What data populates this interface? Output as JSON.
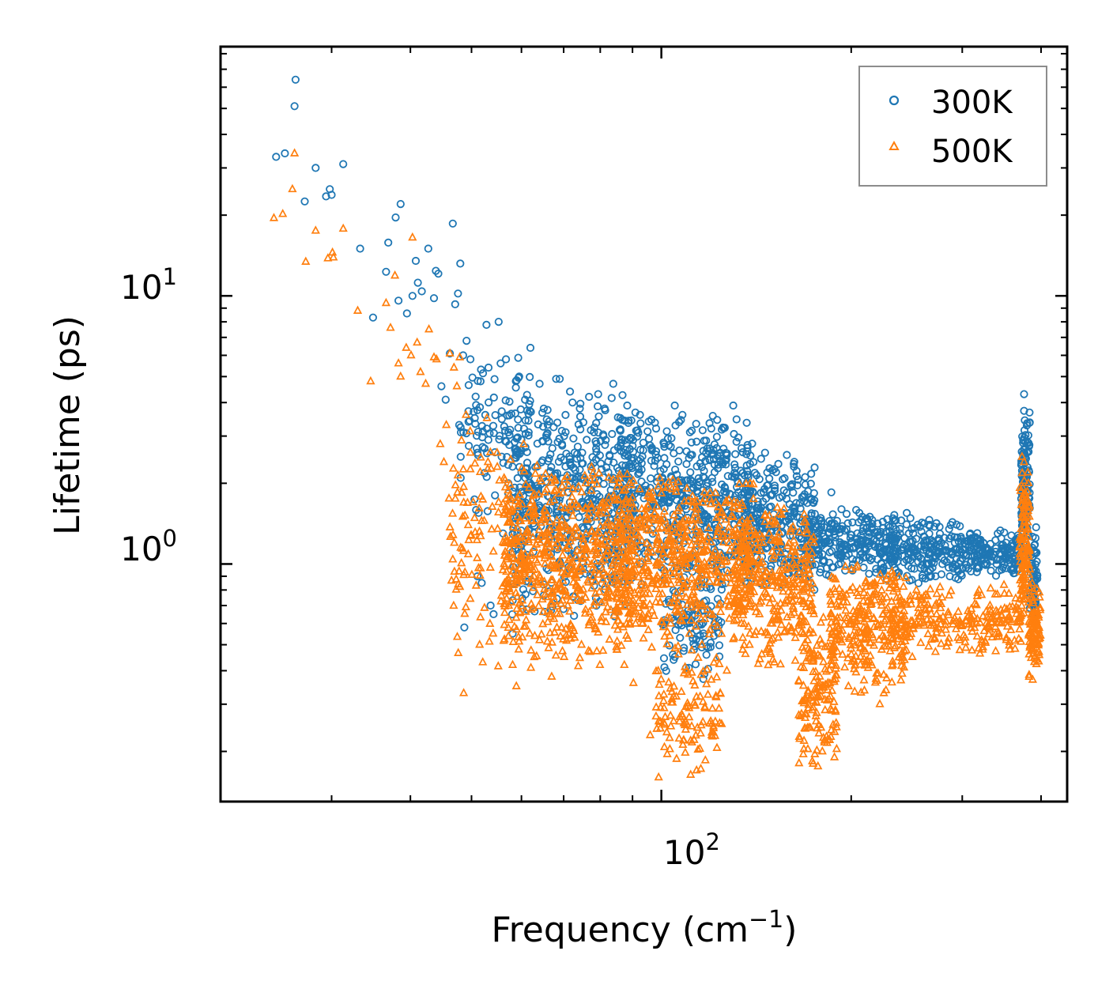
{
  "chart_data": {
    "type": "scatter",
    "title": "",
    "xlabel": "Frequency (cm",
    "xlabel_sup": "−1",
    "xlabel_close": ")",
    "ylabel": "Lifetime (ps)",
    "xscale": "log",
    "yscale": "log",
    "xlim": [
      20,
      440
    ],
    "ylim": [
      0.13,
      85
    ],
    "x_ticks": [
      {
        "base": "10",
        "exp": "2",
        "value": 100
      }
    ],
    "y_ticks": [
      {
        "base": "10",
        "exp": "0",
        "value": 1
      },
      {
        "base": "10",
        "exp": "1",
        "value": 10
      }
    ],
    "legend": {
      "position": "top-right"
    },
    "series": [
      {
        "name": "300K",
        "marker": "circle",
        "color": "#1f77b4",
        "points": [
          [
            24.5,
            33
          ],
          [
            25.3,
            34
          ],
          [
            26.2,
            51
          ],
          [
            26.3,
            64
          ],
          [
            27.2,
            22.5
          ],
          [
            28.3,
            30
          ],
          [
            29.4,
            23.5
          ],
          [
            29.8,
            25
          ],
          [
            30.0,
            23.8
          ],
          [
            31.3,
            31
          ],
          [
            33.3,
            15
          ],
          [
            34.9,
            8.3
          ],
          [
            36.6,
            12.3
          ],
          [
            36.9,
            15.8
          ],
          [
            37.9,
            19.6
          ],
          [
            38.3,
            9.6
          ],
          [
            38.6,
            22
          ],
          [
            39.5,
            8.6
          ],
          [
            40.3,
            10
          ],
          [
            40.8,
            13.5
          ],
          [
            41.1,
            11.2
          ],
          [
            41.7,
            10.4
          ],
          [
            42.7,
            15
          ],
          [
            43.6,
            9.8
          ],
          [
            43.9,
            12.4
          ],
          [
            44.3,
            12.1
          ],
          [
            44.8,
            4.6
          ],
          [
            45.5,
            4.1
          ],
          [
            46.2,
            6.1
          ],
          [
            46.7,
            18.6
          ],
          [
            47.1,
            9.3
          ],
          [
            47.6,
            10.2
          ],
          [
            48.0,
            13.2
          ],
          [
            47.8,
            3.3
          ],
          [
            48.5,
            6
          ],
          [
            48.7,
            0.58
          ],
          [
            49.1,
            6.8
          ],
          [
            49.8,
            5.8
          ],
          [
            50.6,
            3.5
          ],
          [
            51.1,
            0.9
          ],
          [
            51.9,
            0.85
          ],
          [
            52.8,
            7.8
          ],
          [
            53.2,
            5.4
          ],
          [
            53.6,
            0.7
          ],
          [
            54.2,
            0.65
          ],
          [
            55.2,
            8
          ],
          [
            55.6,
            5.6
          ],
          [
            56.1,
            1.3
          ],
          [
            56.7,
            5.8
          ],
          [
            57.2,
            2
          ],
          [
            57.6,
            1.5
          ],
          [
            58.1,
            0.55
          ],
          [
            59.0,
            0.86
          ],
          [
            59.5,
            5
          ],
          [
            60.3,
            1.7
          ],
          [
            60.8,
            4.1
          ],
          [
            61.6,
            3.1
          ],
          [
            62.0,
            6.4
          ],
          [
            63.1,
            2.3
          ],
          [
            64.1,
            4.7
          ],
          [
            65.1,
            3.8
          ],
          [
            66.9,
            2.3
          ],
          [
            68.1,
            4.9
          ],
          [
            69.0,
            4.9
          ],
          [
            70.1,
            3
          ],
          [
            72.3,
            4
          ],
          [
            74.9,
            2.6
          ],
          [
            76.8,
            4.2
          ],
          [
            78.2,
            3.1
          ],
          [
            79.4,
            4.3
          ],
          [
            81.3,
            3.8
          ],
          [
            83.9,
            4.7
          ],
          [
            86.1,
            3.5
          ],
          [
            88.3,
            3.9
          ],
          [
            90.2,
            2.9
          ],
          [
            92.5,
            3.6
          ],
          [
            95.5,
            3.4
          ],
          [
            98.1,
            3.2
          ],
          [
            101,
            2.8
          ],
          [
            105,
            3.9
          ],
          [
            108,
            3.6
          ],
          [
            111,
            3.1
          ],
          [
            116,
            2.5
          ],
          [
            120,
            3.2
          ],
          [
            124,
            2.6
          ],
          [
            130,
            3.9
          ],
          [
            134,
            2.7
          ],
          [
            140,
            2.4
          ],
          [
            146,
            2.6
          ],
          [
            152,
            2.2
          ],
          [
            158,
            1.75
          ],
          [
            164,
            1.5
          ],
          [
            170,
            1.4
          ],
          [
            177,
            1.3
          ],
          [
            186,
            1.85
          ],
          [
            193,
            1.6
          ],
          [
            200,
            1.2
          ],
          [
            206,
            1.55
          ],
          [
            214,
            1.5
          ],
          [
            222,
            1.1
          ],
          [
            230,
            1.25
          ],
          [
            239,
            1.3
          ],
          [
            245,
            1.55
          ],
          [
            251,
            1.15
          ],
          [
            258,
            1.05
          ],
          [
            266,
            1.4
          ],
          [
            272,
            0.9
          ],
          [
            279,
            1.0
          ],
          [
            286,
            1.35
          ],
          [
            292,
            1.2
          ],
          [
            300,
            1.05
          ],
          [
            309,
            1.3
          ],
          [
            318,
            1.05
          ],
          [
            327,
            1.15
          ],
          [
            340,
            1.0
          ],
          [
            352,
            1.2
          ],
          [
            360,
            1.05
          ],
          [
            368,
            1.25
          ],
          [
            376,
            4.3
          ],
          [
            380,
            2.6
          ],
          [
            385,
            1.1
          ],
          [
            392,
            1.25
          ]
        ],
        "bands": [
          {
            "x": [
              48,
              62
            ],
            "y": [
              1.3,
              7
            ],
            "n": 110
          },
          {
            "x": [
              58,
              90
            ],
            "y": [
              0.6,
              4.6
            ],
            "n": 520
          },
          {
            "x": [
              85,
              140
            ],
            "y": [
              0.8,
              3.8
            ],
            "n": 520
          },
          {
            "x": [
              100,
              125
            ],
            "y": [
              0.35,
              1.1
            ],
            "n": 120
          },
          {
            "x": [
              135,
              175
            ],
            "y": [
              0.75,
              2.7
            ],
            "n": 260
          },
          {
            "x": [
              170,
              235
            ],
            "y": [
              0.85,
              1.65
            ],
            "n": 260
          },
          {
            "x": [
              230,
              300
            ],
            "y": [
              0.82,
              1.5
            ],
            "n": 200
          },
          {
            "x": [
              300,
              372
            ],
            "y": [
              0.9,
              1.35
            ],
            "n": 160
          },
          {
            "x": [
              372,
              384
            ],
            "y": [
              1.0,
              4.2
            ],
            "n": 120
          },
          {
            "x": [
              384,
              395
            ],
            "y": [
              0.55,
              1.4
            ],
            "n": 60
          }
        ]
      },
      {
        "name": "500K",
        "marker": "triangle",
        "color": "#ff7f0e",
        "points": [
          [
            24.3,
            19.5
          ],
          [
            25.1,
            20.2
          ],
          [
            26.0,
            25
          ],
          [
            26.2,
            34
          ],
          [
            27.3,
            13.4
          ],
          [
            28.3,
            17.5
          ],
          [
            29.6,
            13.8
          ],
          [
            30.1,
            14.5
          ],
          [
            30.2,
            13.9
          ],
          [
            31.3,
            17.8
          ],
          [
            33.0,
            8.8
          ],
          [
            34.6,
            4.8
          ],
          [
            36.6,
            9.4
          ],
          [
            37.2,
            7.6
          ],
          [
            37.8,
            11.9
          ],
          [
            38.3,
            5.6
          ],
          [
            38.6,
            5
          ],
          [
            39.4,
            6.4
          ],
          [
            40.1,
            6
          ],
          [
            40.3,
            16.5
          ],
          [
            41.0,
            6.7
          ],
          [
            41.5,
            5.2
          ],
          [
            42.3,
            4.7
          ],
          [
            42.8,
            7.5
          ],
          [
            43.6,
            5.9
          ],
          [
            44.0,
            5.8
          ],
          [
            44.6,
            2.8
          ],
          [
            45.2,
            2.4
          ],
          [
            45.6,
            3.3
          ],
          [
            46.2,
            6.1
          ],
          [
            46.9,
            5.4
          ],
          [
            47.4,
            4.6
          ],
          [
            47.9,
            5.9
          ],
          [
            48.6,
            0.33
          ],
          [
            49.0,
            3.6
          ],
          [
            49.8,
            2.6
          ],
          [
            50.3,
            1.7
          ],
          [
            51.5,
            0.5
          ],
          [
            52.1,
            0.43
          ],
          [
            52.9,
            3.5
          ],
          [
            53.1,
            2.4
          ],
          [
            54.1,
            0.55
          ],
          [
            54.9,
            2.6
          ],
          [
            55.2,
            1.7
          ],
          [
            56.3,
            1
          ],
          [
            57.2,
            0.88
          ],
          [
            58.1,
            0.42
          ],
          [
            58.9,
            0.35
          ],
          [
            59.4,
            0.48
          ],
          [
            60.5,
            2.8
          ],
          [
            62.1,
            0.41
          ],
          [
            62.6,
            1.8
          ],
          [
            64.1,
            0.52
          ],
          [
            66.3,
            1.1
          ],
          [
            67.0,
            0.38
          ],
          [
            68.9,
            1.3
          ],
          [
            70.1,
            0.45
          ],
          [
            72.4,
            1.9
          ],
          [
            74.7,
            0.5
          ],
          [
            77.5,
            2.3
          ],
          [
            79.9,
            0.42
          ],
          [
            82.5,
            2.1
          ],
          [
            85.0,
            0.48
          ],
          [
            87.3,
            1.6
          ],
          [
            90.3,
            0.36
          ],
          [
            92.4,
            1.9
          ],
          [
            96.0,
            0.23
          ],
          [
            99.0,
            0.16
          ],
          [
            101,
            0.29
          ],
          [
            104,
            1.9
          ],
          [
            108,
            0.27
          ],
          [
            112,
            1.7
          ],
          [
            116,
            0.5
          ],
          [
            122,
            1.7
          ],
          [
            127,
            0.4
          ],
          [
            133,
            1.6
          ],
          [
            138,
            0.5
          ],
          [
            144,
            0.56
          ],
          [
            150,
            0.9
          ],
          [
            157,
            0.95
          ],
          [
            162,
            0.68
          ],
          [
            168,
            0.55
          ],
          [
            174,
            0.18
          ],
          [
            180,
            0.2
          ],
          [
            186,
            0.24
          ],
          [
            192,
            0.63
          ],
          [
            198,
            0.35
          ],
          [
            204,
            0.55
          ],
          [
            213,
            0.65
          ],
          [
            222,
            0.3
          ],
          [
            231,
            0.53
          ],
          [
            240,
            0.7
          ],
          [
            250,
            0.45
          ],
          [
            262,
            0.68
          ],
          [
            272,
            0.47
          ],
          [
            285,
            0.66
          ],
          [
            297,
            0.52
          ],
          [
            310,
            0.68
          ],
          [
            322,
            0.52
          ],
          [
            332,
            0.7
          ],
          [
            345,
            0.6
          ],
          [
            357,
            0.48
          ],
          [
            368,
            0.68
          ],
          [
            376,
            2.4
          ],
          [
            380,
            1.5
          ],
          [
            388,
            0.37
          ],
          [
            392,
            0.6
          ],
          [
            398,
            0.75
          ]
        ],
        "bands": [
          {
            "x": [
              46,
              60
            ],
            "y": [
              0.4,
              3.5
            ],
            "n": 110
          },
          {
            "x": [
              56,
              90
            ],
            "y": [
              0.4,
              2.5
            ],
            "n": 620
          },
          {
            "x": [
              85,
              140
            ],
            "y": [
              0.45,
              2.3
            ],
            "n": 560
          },
          {
            "x": [
              98,
              125
            ],
            "y": [
              0.15,
              0.55
            ],
            "n": 120
          },
          {
            "x": [
              130,
              175
            ],
            "y": [
              0.4,
              1.9
            ],
            "n": 320
          },
          {
            "x": [
              165,
              190
            ],
            "y": [
              0.16,
              0.65
            ],
            "n": 140
          },
          {
            "x": [
              185,
              245
            ],
            "y": [
              0.32,
              1.05
            ],
            "n": 300
          },
          {
            "x": [
              240,
              372
            ],
            "y": [
              0.45,
              0.85
            ],
            "n": 220
          },
          {
            "x": [
              370,
              384
            ],
            "y": [
              0.55,
              2.6
            ],
            "n": 120
          },
          {
            "x": [
              382,
              400
            ],
            "y": [
              0.35,
              0.9
            ],
            "n": 90
          }
        ]
      }
    ]
  }
}
